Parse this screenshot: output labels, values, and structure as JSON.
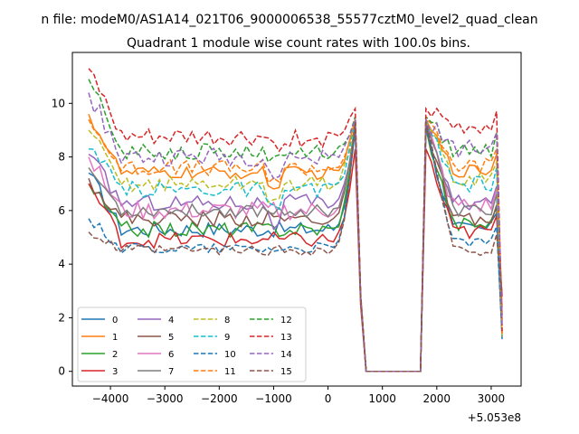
{
  "chart_data": {
    "type": "line",
    "suptitle": "n file: modeM0/AS1A14_021T06_9000006538_55577cztM0_level2_quad_clean",
    "title": "Quadrant 1 module wise count rates with 100.0s bins.",
    "xlabel": "",
    "ylabel": "",
    "x_offset_label": "+5.053e8",
    "xlim": [
      -4700,
      3550
    ],
    "ylim": [
      -0.55,
      11.9
    ],
    "xticks": [
      -4000,
      -3000,
      -2000,
      -1000,
      0,
      1000,
      2000,
      3000
    ],
    "xtick_labels": [
      "−4000",
      "−3000",
      "−2000",
      "−1000",
      "0",
      "1000",
      "2000",
      "3000"
    ],
    "yticks": [
      0,
      2,
      4,
      6,
      8,
      10
    ],
    "ytick_labels": [
      "0",
      "2",
      "4",
      "6",
      "8",
      "10"
    ],
    "legend_position": "lower-left",
    "legend_columns": 4,
    "gap": {
      "drop_end": 500,
      "zero_start": 700,
      "zero_end": 1700,
      "resume": 1800
    },
    "x_start": -4400,
    "x_end": 3200,
    "step": 100,
    "series": [
      {
        "name": "0",
        "color": "#1f77b4",
        "dash": "solid",
        "start": 7.4,
        "base1": 5.3,
        "base2": 5.3,
        "noise": 0.3,
        "peak": 9.0,
        "end": 1.2
      },
      {
        "name": "1",
        "color": "#ff7f0e",
        "dash": "solid",
        "start": 9.6,
        "base1": 7.4,
        "base2": 7.5,
        "noise": 0.25,
        "peak": 9.4,
        "end": 2.4
      },
      {
        "name": "2",
        "color": "#2ca02c",
        "dash": "solid",
        "start": 7.0,
        "base1": 5.3,
        "base2": 5.5,
        "noise": 0.3,
        "peak": 9.1,
        "end": 2.1
      },
      {
        "name": "3",
        "color": "#d62728",
        "dash": "solid",
        "start": 7.0,
        "base1": 4.9,
        "base2": 5.2,
        "noise": 0.3,
        "peak": 8.3,
        "end": 2.8
      },
      {
        "name": "4",
        "color": "#9467bd",
        "dash": "solid",
        "start": 8.1,
        "base1": 6.3,
        "base2": 6.3,
        "noise": 0.3,
        "peak": 9.1,
        "end": 1.4
      },
      {
        "name": "5",
        "color": "#8c564b",
        "dash": "solid",
        "start": 7.2,
        "base1": 5.7,
        "base2": 5.6,
        "noise": 0.3,
        "peak": 9.2,
        "end": 1.9
      },
      {
        "name": "6",
        "color": "#e377c2",
        "dash": "solid",
        "start": 8.0,
        "base1": 6.0,
        "base2": 6.2,
        "noise": 0.35,
        "peak": 9.2,
        "end": 1.5
      },
      {
        "name": "7",
        "color": "#7f7f7f",
        "dash": "solid",
        "start": 7.6,
        "base1": 6.0,
        "base2": 6.0,
        "noise": 0.25,
        "peak": 9.3,
        "end": 2.1
      },
      {
        "name": "8",
        "color": "#bcbd22",
        "dash": "dashed",
        "start": 9.0,
        "base1": 7.0,
        "base2": 7.2,
        "noise": 0.3,
        "peak": 9.3,
        "end": 1.3
      },
      {
        "name": "9",
        "color": "#17becf",
        "dash": "dashed",
        "start": 8.3,
        "base1": 6.8,
        "base2": 7.0,
        "noise": 0.3,
        "peak": 9.4,
        "end": 1.3
      },
      {
        "name": "10",
        "color": "#1f77b4",
        "dash": "dashed",
        "start": 5.7,
        "base1": 4.6,
        "base2": 4.8,
        "noise": 0.2,
        "peak": 9.2,
        "end": 1.4
      },
      {
        "name": "11",
        "color": "#ff7f0e",
        "dash": "dashed",
        "start": 9.4,
        "base1": 7.6,
        "base2": 7.7,
        "noise": 0.3,
        "peak": 9.4,
        "end": 1.3
      },
      {
        "name": "12",
        "color": "#2ca02c",
        "dash": "dashed",
        "start": 10.9,
        "base1": 8.2,
        "base2": 8.3,
        "noise": 0.3,
        "peak": 9.5,
        "end": 1.6
      },
      {
        "name": "13",
        "color": "#d62728",
        "dash": "dashed",
        "start": 11.3,
        "base1": 8.7,
        "base2": 9.1,
        "noise": 0.35,
        "peak": 9.8,
        "end": 1.5
      },
      {
        "name": "14",
        "color": "#9467bd",
        "dash": "dashed",
        "start": 10.4,
        "base1": 8.0,
        "base2": 8.3,
        "noise": 0.35,
        "peak": 9.4,
        "end": 1.7
      },
      {
        "name": "15",
        "color": "#8c564b",
        "dash": "dashed",
        "start": 5.2,
        "base1": 4.5,
        "base2": 4.5,
        "noise": 0.2,
        "peak": 9.3,
        "end": 2.9
      }
    ]
  }
}
